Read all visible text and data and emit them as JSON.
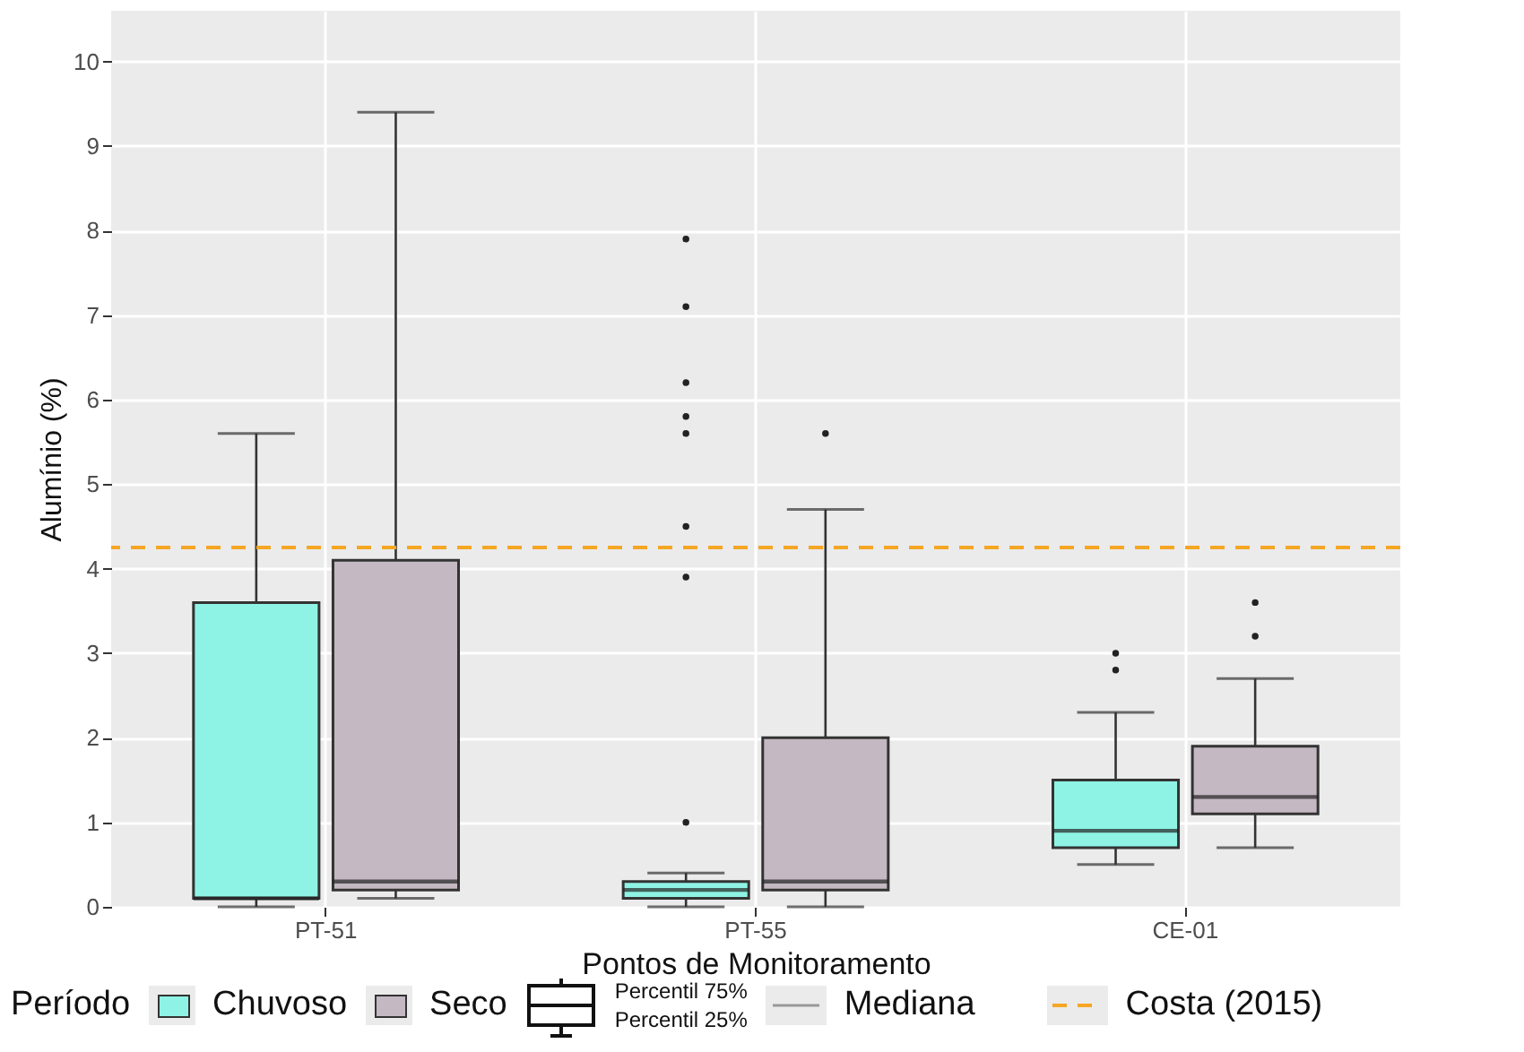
{
  "chart_data": {
    "type": "box",
    "xlabel": "Pontos de Monitoramento",
    "ylabel": "Alumínio (%)",
    "legend_title": "Período",
    "categories": [
      "PT-51",
      "PT-55",
      "CE-01"
    ],
    "series": [
      {
        "name": "Chuvoso",
        "color": "#8ef3e4",
        "boxes": [
          {
            "low": 0,
            "q1": 0.1,
            "median": 0.1,
            "q3": 3.6,
            "high": 5.6
          },
          {
            "low": 0,
            "q1": 0.1,
            "median": 0.2,
            "q3": 0.3,
            "high": 0.4,
            "outliers": [
              1.0,
              3.9,
              4.5,
              5.6,
              5.8,
              6.2,
              7.1,
              7.9
            ]
          },
          {
            "low": 0.5,
            "q1": 0.7,
            "median": 0.9,
            "q3": 1.5,
            "high": 2.3,
            "outliers": [
              2.8,
              3.0
            ]
          }
        ]
      },
      {
        "name": "Seco",
        "color": "#c4b8c2",
        "boxes": [
          {
            "low": 0.1,
            "q1": 0.2,
            "median": 0.3,
            "q3": 4.1,
            "high": 9.4
          },
          {
            "low": 0,
            "q1": 0.2,
            "median": 0.3,
            "q3": 2.0,
            "high": 4.7,
            "outliers": [
              5.6
            ]
          },
          {
            "low": 0.7,
            "q1": 1.1,
            "median": 1.3,
            "q3": 1.9,
            "high": 2.7,
            "outliers": [
              3.2,
              3.6
            ]
          }
        ]
      }
    ],
    "ylim": [
      0,
      10.6
    ],
    "yticks": [
      0,
      1,
      2,
      3,
      4,
      5,
      6,
      7,
      8,
      9,
      10
    ],
    "grid": true,
    "legend": "bottom",
    "ref_lines": [
      {
        "axis": "y",
        "value": 4.25,
        "label": "Costa (2015)",
        "color": "#f5a623",
        "line_style": "dashed"
      }
    ],
    "annotations": [
      "Percentil 75%",
      "Percentil 25%",
      "Mediana"
    ]
  }
}
